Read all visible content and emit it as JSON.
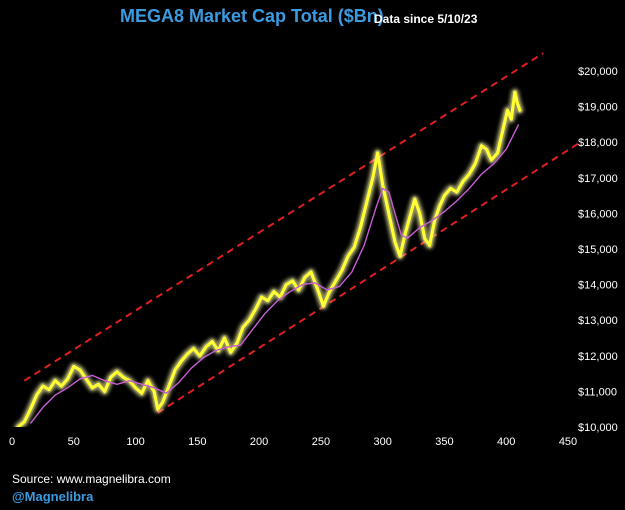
{
  "header": {
    "title": "MEGA8 Market Cap Total ($Bn)",
    "subtitle": "Data since 5/10/23",
    "title_color": "#3a9be0"
  },
  "footer": {
    "source": "Source: www.magnelibra.com",
    "handle": "@Magnelibra",
    "handle_color": "#3a9be0"
  },
  "colors": {
    "background": "#000000",
    "price_line": "#ffff33",
    "price_glow": "#ffffaa",
    "moving_average": "#c75cd6",
    "channel_lines": "#e02020",
    "tick_text": "#ffffff"
  },
  "chart_data": {
    "type": "line",
    "x_range": [
      0,
      450
    ],
    "y_range": [
      10000,
      20000
    ],
    "x_ticks": [
      0,
      50,
      100,
      150,
      200,
      250,
      300,
      350,
      400,
      450
    ],
    "x_tick_labels": [
      "0",
      "50",
      "100",
      "150",
      "200",
      "250",
      "300",
      "350",
      "400",
      "450"
    ],
    "y_ticks": [
      10000,
      11000,
      12000,
      13000,
      14000,
      15000,
      16000,
      17000,
      18000,
      19000,
      20000
    ],
    "y_tick_labels": [
      "$10,000",
      "$11,000",
      "$12,000",
      "$13,000",
      "$14,000",
      "$15,000",
      "$16,000",
      "$17,000",
      "$18,000",
      "$19,000",
      "$20,000"
    ],
    "y_axis_side": "right",
    "grid": false,
    "series": [
      {
        "role": "market-cap",
        "style": "glow",
        "points": [
          [
            5,
            10000
          ],
          [
            10,
            10150
          ],
          [
            15,
            10500
          ],
          [
            20,
            10900
          ],
          [
            25,
            11150
          ],
          [
            30,
            11050
          ],
          [
            35,
            11300
          ],
          [
            40,
            11150
          ],
          [
            45,
            11350
          ],
          [
            50,
            11700
          ],
          [
            55,
            11600
          ],
          [
            60,
            11350
          ],
          [
            65,
            11100
          ],
          [
            70,
            11200
          ],
          [
            75,
            11000
          ],
          [
            80,
            11400
          ],
          [
            85,
            11550
          ],
          [
            90,
            11400
          ],
          [
            95,
            11300
          ],
          [
            100,
            11100
          ],
          [
            105,
            10950
          ],
          [
            110,
            11300
          ],
          [
            115,
            11000
          ],
          [
            118,
            10500
          ],
          [
            122,
            10700
          ],
          [
            127,
            11150
          ],
          [
            132,
            11600
          ],
          [
            137,
            11850
          ],
          [
            142,
            12050
          ],
          [
            147,
            12200
          ],
          [
            152,
            12000
          ],
          [
            157,
            12250
          ],
          [
            162,
            12400
          ],
          [
            167,
            12150
          ],
          [
            172,
            12500
          ],
          [
            177,
            12100
          ],
          [
            182,
            12350
          ],
          [
            187,
            12800
          ],
          [
            192,
            13000
          ],
          [
            197,
            13300
          ],
          [
            202,
            13650
          ],
          [
            207,
            13550
          ],
          [
            212,
            13800
          ],
          [
            217,
            13650
          ],
          [
            222,
            14000
          ],
          [
            227,
            14100
          ],
          [
            232,
            13850
          ],
          [
            237,
            14200
          ],
          [
            242,
            14350
          ],
          [
            247,
            13900
          ],
          [
            252,
            13400
          ],
          [
            257,
            13800
          ],
          [
            262,
            14100
          ],
          [
            267,
            14400
          ],
          [
            272,
            14800
          ],
          [
            277,
            15050
          ],
          [
            282,
            15600
          ],
          [
            287,
            16300
          ],
          [
            292,
            17000
          ],
          [
            296,
            17700
          ],
          [
            300,
            16800
          ],
          [
            305,
            16000
          ],
          [
            310,
            15200
          ],
          [
            314,
            14800
          ],
          [
            318,
            15400
          ],
          [
            322,
            15900
          ],
          [
            326,
            16400
          ],
          [
            330,
            16000
          ],
          [
            334,
            15300
          ],
          [
            338,
            15100
          ],
          [
            342,
            15800
          ],
          [
            346,
            16200
          ],
          [
            350,
            16500
          ],
          [
            355,
            16700
          ],
          [
            360,
            16600
          ],
          [
            365,
            16900
          ],
          [
            370,
            17100
          ],
          [
            375,
            17400
          ],
          [
            380,
            17900
          ],
          [
            384,
            17800
          ],
          [
            388,
            17500
          ],
          [
            393,
            17700
          ],
          [
            397,
            18300
          ],
          [
            401,
            18900
          ],
          [
            404,
            18650
          ],
          [
            407,
            19400
          ],
          [
            409,
            19100
          ],
          [
            411,
            18900
          ]
        ]
      },
      {
        "role": "moving-average",
        "style": "thin",
        "points": [
          [
            15,
            10100
          ],
          [
            25,
            10550
          ],
          [
            35,
            10900
          ],
          [
            45,
            11100
          ],
          [
            55,
            11350
          ],
          [
            65,
            11450
          ],
          [
            75,
            11300
          ],
          [
            85,
            11200
          ],
          [
            95,
            11300
          ],
          [
            105,
            11200
          ],
          [
            115,
            11100
          ],
          [
            125,
            10950
          ],
          [
            135,
            11250
          ],
          [
            145,
            11650
          ],
          [
            155,
            11950
          ],
          [
            165,
            12150
          ],
          [
            175,
            12250
          ],
          [
            185,
            12300
          ],
          [
            195,
            12750
          ],
          [
            205,
            13200
          ],
          [
            215,
            13550
          ],
          [
            225,
            13800
          ],
          [
            235,
            14000
          ],
          [
            245,
            14050
          ],
          [
            255,
            13850
          ],
          [
            265,
            13950
          ],
          [
            275,
            14350
          ],
          [
            285,
            15100
          ],
          [
            295,
            16200
          ],
          [
            300,
            16700
          ],
          [
            305,
            16600
          ],
          [
            310,
            16000
          ],
          [
            315,
            15400
          ],
          [
            320,
            15300
          ],
          [
            330,
            15600
          ],
          [
            340,
            15800
          ],
          [
            350,
            16050
          ],
          [
            360,
            16350
          ],
          [
            370,
            16700
          ],
          [
            380,
            17100
          ],
          [
            390,
            17400
          ],
          [
            400,
            17800
          ],
          [
            410,
            18500
          ]
        ]
      }
    ],
    "channel_lines": [
      {
        "role": "upper",
        "from": [
          10,
          11300
        ],
        "to": [
          430,
          20500
        ]
      },
      {
        "role": "lower",
        "from": [
          118,
          10400
        ],
        "to": [
          460,
          18000
        ]
      }
    ]
  }
}
